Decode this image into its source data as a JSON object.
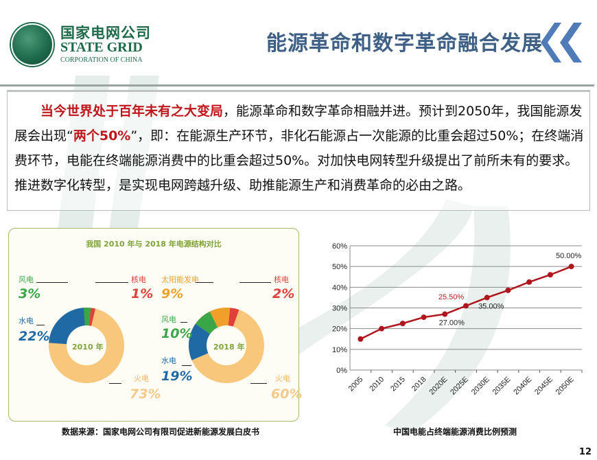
{
  "header": {
    "logo": {
      "name_cn": "国家电网公司",
      "name_en": "STATE GRID",
      "subtitle": "CORPORATION OF CHINA",
      "icon": "state-grid-globe-icon"
    },
    "title": "能源革命和数字革命融合发展",
    "decoration_icon": "double-chevron-left-icon",
    "accent_color": "#3e5f86"
  },
  "intro": {
    "highlight_1": "当今世界处于百年未有之大变局",
    "text_1": "，能源革命和数字革命相融并进。预计到2050年，我国能源发展会出现“",
    "highlight_2": "两个50%",
    "text_2": "”，即：在能源生产环节，非化石能源占一次能源的比重会超过50%；在终端消费环节，电能在终端能源消费中的比重会超过50%。对加快电网转型升级提出了前所未有的要求。推进数字化转型，是实现电网跨越升级、助推能源生产和消费革命的必由之路。",
    "highlight_color": "#c0161b"
  },
  "left_panel": {
    "title": "我国 2010 年与 2018 年电源结构对比",
    "source": "数据来源：国家电网公司有限司促进新能源发展白皮书",
    "donut_2010": {
      "center_label": "2010 年",
      "segments": [
        {
          "name": "火电",
          "value": "73%",
          "color": "#f9c77b"
        },
        {
          "name": "水电",
          "value": "22%",
          "color": "#1f6aa5"
        },
        {
          "name": "风电",
          "value": "3%",
          "color": "#3aa648"
        },
        {
          "name": "核电",
          "value": "1%",
          "color": "#e0403a"
        }
      ]
    },
    "donut_2018": {
      "center_label": "2018 年",
      "segments": [
        {
          "name": "火电",
          "value": "60%",
          "color": "#f9c77b"
        },
        {
          "name": "水电",
          "value": "19%",
          "color": "#1f6aa5"
        },
        {
          "name": "风电",
          "value": "10%",
          "color": "#3aa648"
        },
        {
          "name": "太阳能发电",
          "value": "9%",
          "color": "#f0a02a"
        },
        {
          "name": "核电",
          "value": "2%",
          "color": "#e0403a"
        }
      ]
    }
  },
  "right_panel": {
    "caption": "中国电能占终端能源消费比例预测"
  },
  "chart_data": [
    {
      "type": "pie",
      "title": "我国 2010 年电源结构",
      "categories": [
        "火电",
        "水电",
        "风电",
        "核电"
      ],
      "values": [
        73,
        22,
        3,
        1
      ],
      "unit": "%"
    },
    {
      "type": "pie",
      "title": "我国 2018 年电源结构",
      "categories": [
        "火电",
        "水电",
        "风电",
        "太阳能发电",
        "核电"
      ],
      "values": [
        60,
        19,
        10,
        9,
        2
      ],
      "unit": "%"
    },
    {
      "type": "line",
      "title": "中国电能占终端能源消费比例预测",
      "categories": [
        "2005",
        "2010",
        "2015",
        "2018",
        "2020E",
        "2025E",
        "2030E",
        "2035E",
        "2040E",
        "2045E",
        "2050E"
      ],
      "series": [
        {
          "name": "电能占终端能源消费比例",
          "values": [
            15,
            20,
            22.5,
            25.5,
            27,
            31,
            35,
            38.5,
            42.5,
            46,
            50
          ],
          "color": "#b0141c"
        }
      ],
      "annotations": [
        {
          "x": "2018",
          "label": "25.50%",
          "color": "#c0161b"
        },
        {
          "x": "2020E",
          "label": "27.00%",
          "color": "#222222"
        },
        {
          "x": "2030E",
          "label": "35.00%",
          "color": "#222222"
        },
        {
          "x": "2050E",
          "label": "50.00%",
          "color": "#222222"
        }
      ],
      "yticks": [
        "0%",
        "10%",
        "20%",
        "30%",
        "40%",
        "50%",
        "60%"
      ],
      "ylim": [
        0,
        60
      ],
      "xlabel": "",
      "ylabel": "",
      "grid": true
    }
  ],
  "page_number": "12"
}
